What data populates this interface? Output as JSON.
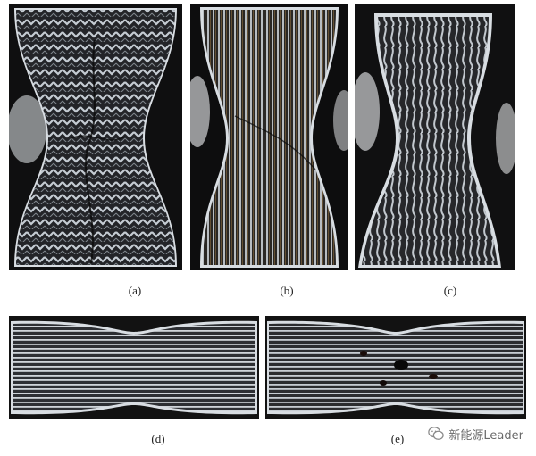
{
  "figure": {
    "panels": [
      {
        "id": "a",
        "label": "(a)"
      },
      {
        "id": "b",
        "label": "(b)"
      },
      {
        "id": "c",
        "label": "(c)"
      },
      {
        "id": "d",
        "label": "(d)"
      },
      {
        "id": "e",
        "label": "(e)"
      }
    ]
  },
  "watermark": {
    "text": "新能源Leader",
    "icon": "chat-bubble-icon"
  },
  "colors": {
    "metal_light": "#c9ced4",
    "metal_dark": "#1e1f22",
    "copper": "#8a6a40",
    "frame": "#d8dde2"
  }
}
